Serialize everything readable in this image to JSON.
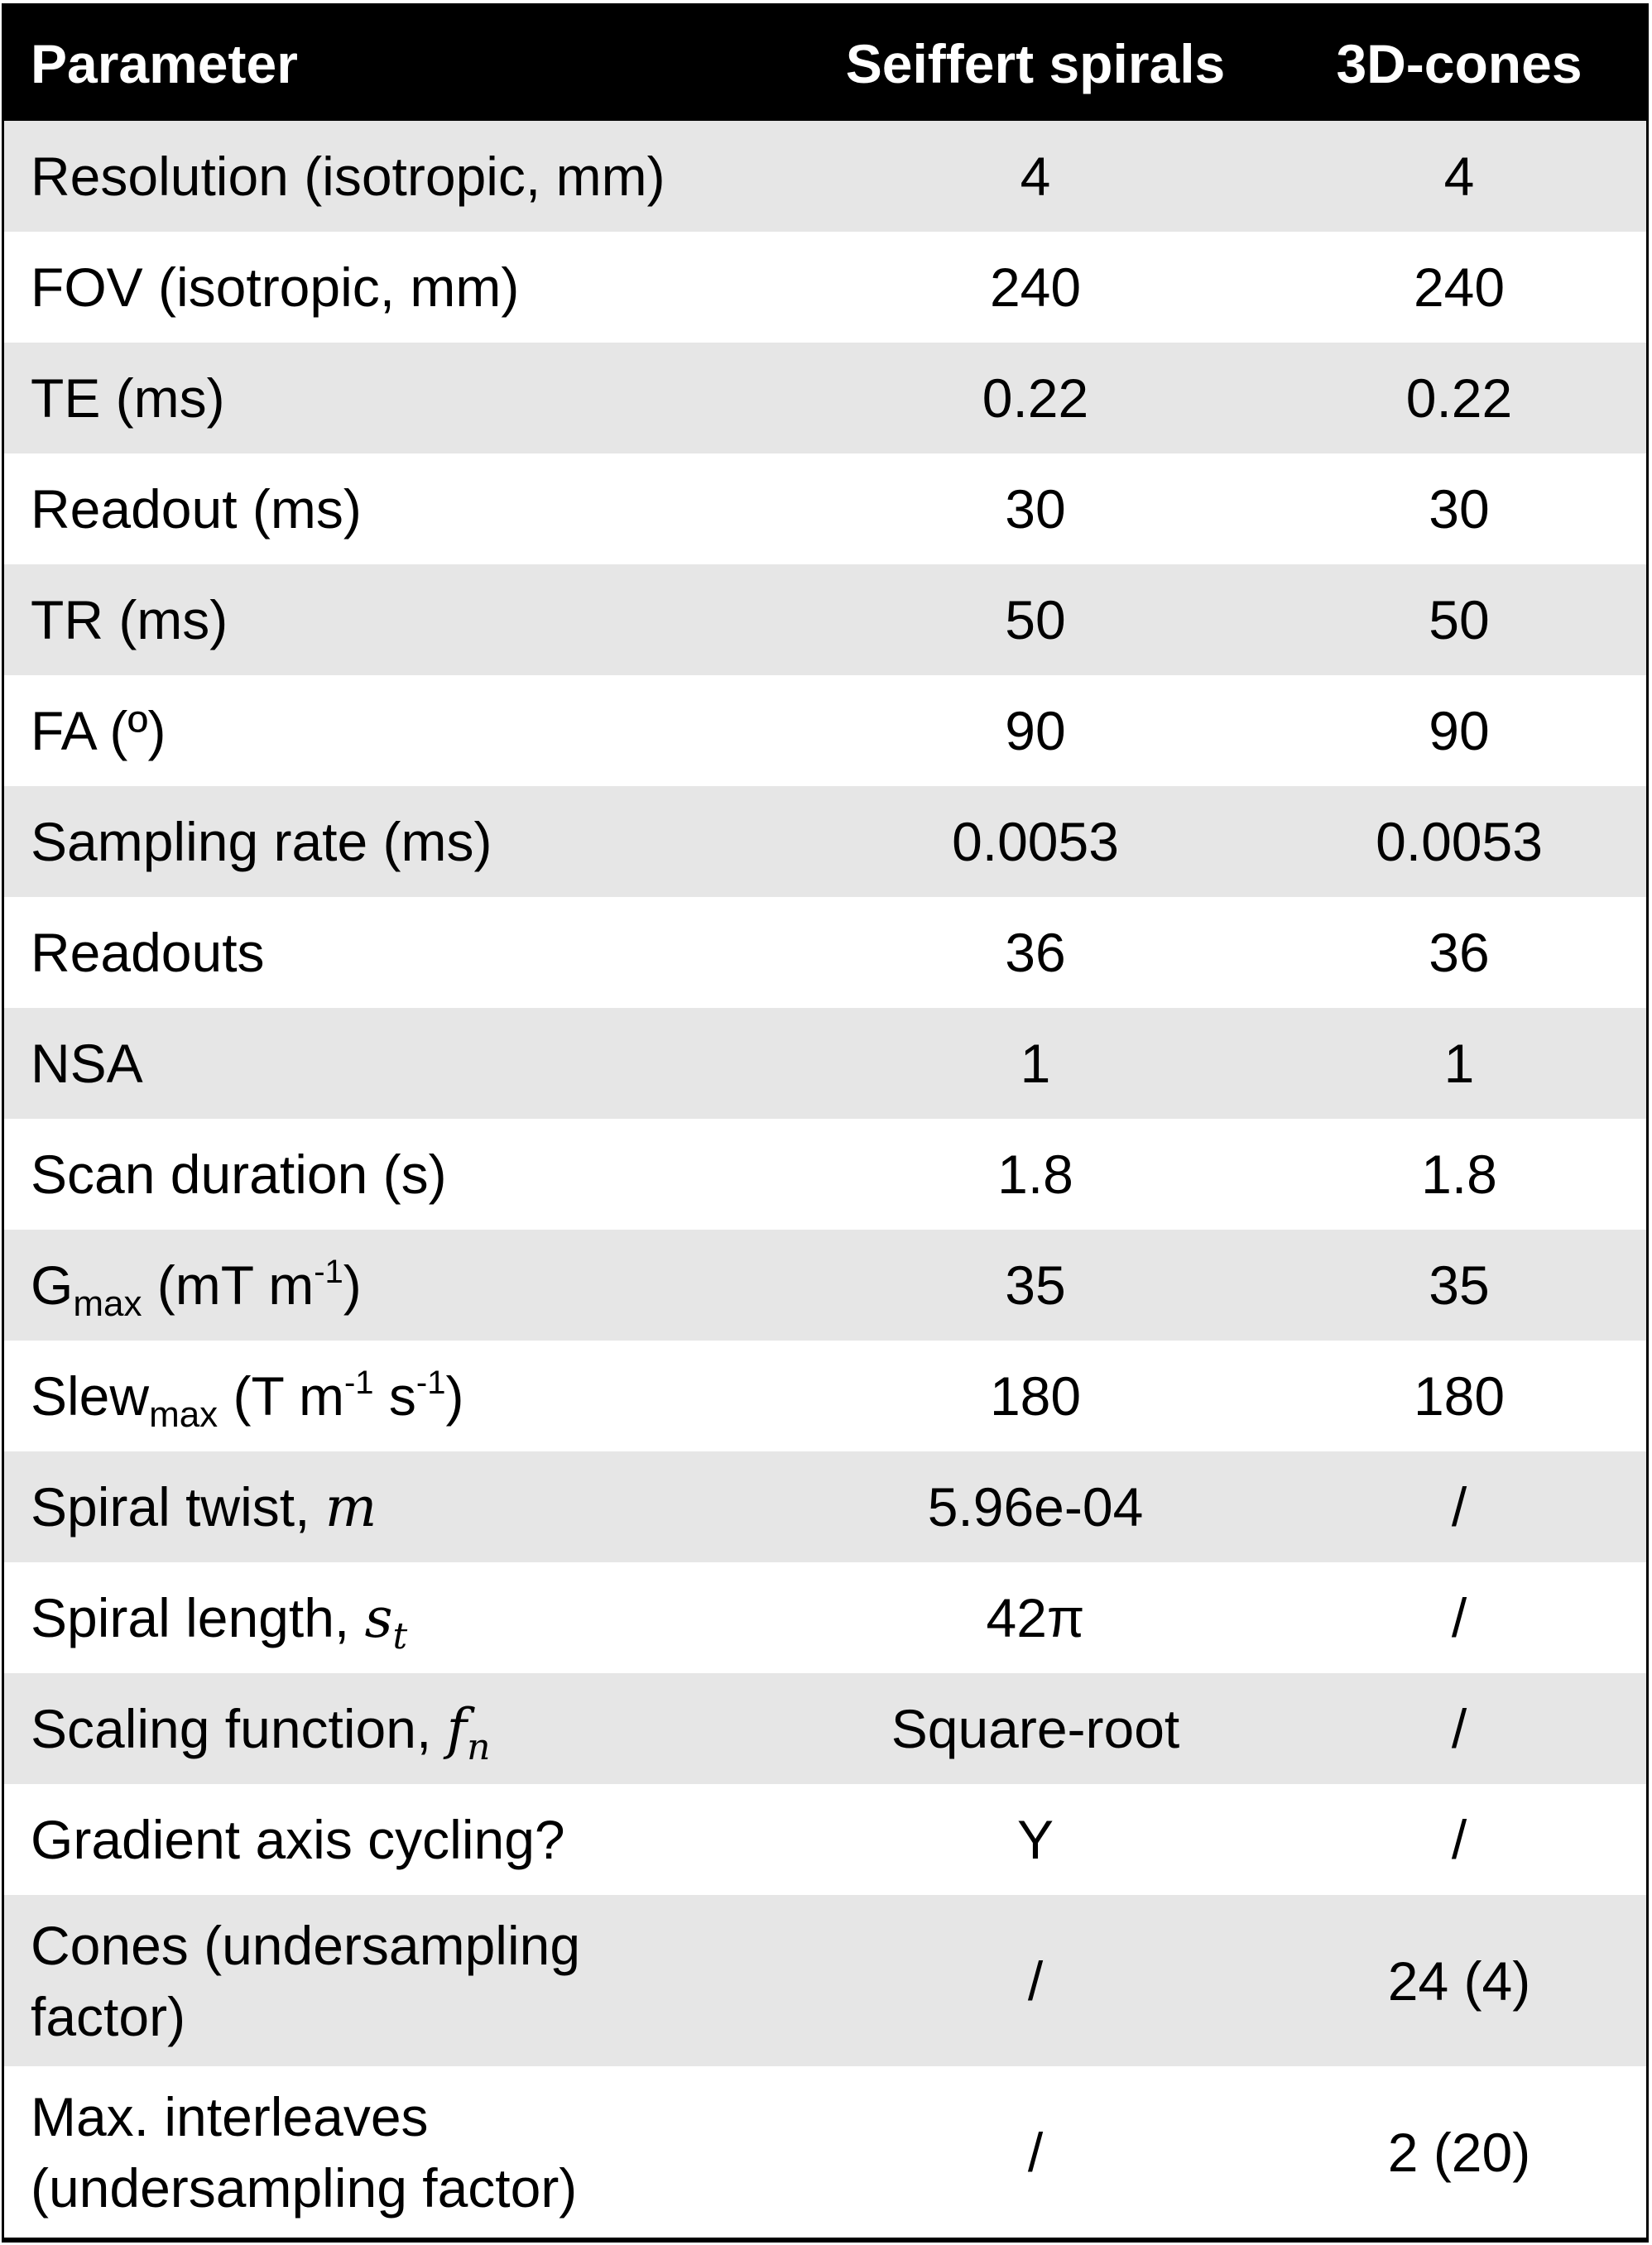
{
  "header": {
    "parameter": "Parameter",
    "seiffert": "Seiffert spirals",
    "cones": "3D-cones"
  },
  "rows": [
    {
      "label": [
        {
          "t": "Resolution (isotropic, mm)"
        }
      ],
      "seiffert": "4",
      "cones": "4"
    },
    {
      "label": [
        {
          "t": "FOV (isotropic, mm)"
        }
      ],
      "seiffert": "240",
      "cones": "240"
    },
    {
      "label": [
        {
          "t": "TE (ms)"
        }
      ],
      "seiffert": "0.22",
      "cones": "0.22"
    },
    {
      "label": [
        {
          "t": "Readout (ms)"
        }
      ],
      "seiffert": "30",
      "cones": "30"
    },
    {
      "label": [
        {
          "t": "TR (ms)"
        }
      ],
      "seiffert": "50",
      "cones": "50"
    },
    {
      "label": [
        {
          "t": "FA (º)"
        }
      ],
      "seiffert": "90",
      "cones": "90"
    },
    {
      "label": [
        {
          "t": "Sampling rate (ms)"
        }
      ],
      "seiffert": "0.0053",
      "cones": "0.0053"
    },
    {
      "label": [
        {
          "t": "Readouts"
        }
      ],
      "seiffert": "36",
      "cones": "36"
    },
    {
      "label": [
        {
          "t": "NSA"
        }
      ],
      "seiffert": "1",
      "cones": "1"
    },
    {
      "label": [
        {
          "t": "Scan duration (s)"
        }
      ],
      "seiffert": "1.8",
      "cones": "1.8"
    },
    {
      "label": [
        {
          "t": "G"
        },
        {
          "t": "max",
          "s": "sub"
        },
        {
          "t": " (mT m"
        },
        {
          "t": "-1",
          "s": "sup"
        },
        {
          "t": ")"
        }
      ],
      "seiffert": "35",
      "cones": "35"
    },
    {
      "label": [
        {
          "t": "Slew"
        },
        {
          "t": "max",
          "s": "sub"
        },
        {
          "t": " (T m"
        },
        {
          "t": "-1",
          "s": "sup"
        },
        {
          "t": " s"
        },
        {
          "t": "-1",
          "s": "sup"
        },
        {
          "t": ")"
        }
      ],
      "seiffert": "180",
      "cones": "180"
    },
    {
      "label": [
        {
          "t": "Spiral twist, "
        },
        {
          "t": "m",
          "s": "i"
        }
      ],
      "seiffert": "5.96e-04",
      "cones": "/"
    },
    {
      "label": [
        {
          "t": "Spiral length, "
        },
        {
          "t": "s",
          "s": "i"
        },
        {
          "t": "t",
          "s": "isub"
        }
      ],
      "seiffert": "42π",
      "cones": "/"
    },
    {
      "label": [
        {
          "t": "Scaling function, "
        },
        {
          "t": "f",
          "s": "i"
        },
        {
          "t": "n",
          "s": "isub"
        }
      ],
      "seiffert": "Square-root",
      "cones": "/"
    },
    {
      "label": [
        {
          "t": "Gradient axis cycling?"
        }
      ],
      "seiffert": "Y",
      "cones": "/"
    },
    {
      "label": [
        {
          "t": "Cones (undersampling"
        },
        {
          "t": "",
          "s": "br"
        },
        {
          "t": "factor)"
        }
      ],
      "seiffert": "/",
      "cones": "24 (4)",
      "tall": true
    },
    {
      "label": [
        {
          "t": "Max. interleaves"
        },
        {
          "t": "",
          "s": "br"
        },
        {
          "t": "(undersampling factor)"
        }
      ],
      "seiffert": "/",
      "cones": "2 (20)",
      "tall": true
    }
  ]
}
